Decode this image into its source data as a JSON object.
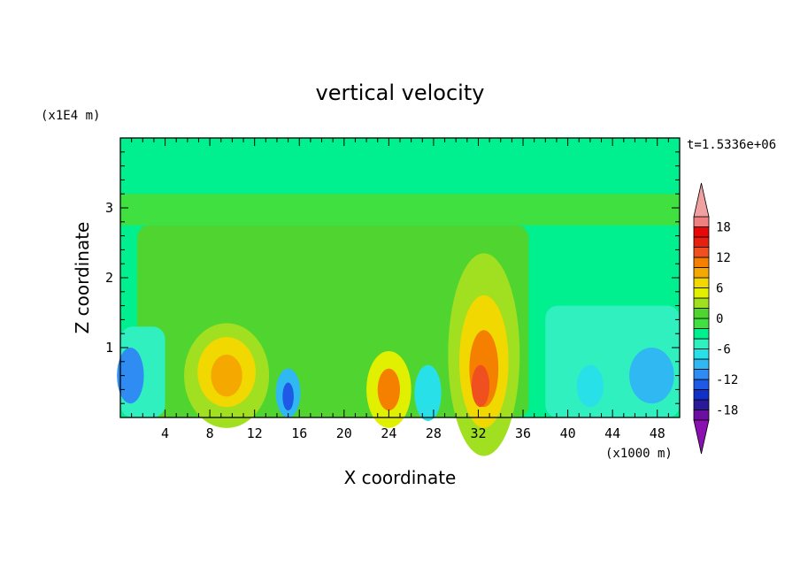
{
  "chart_data": {
    "type": "heatmap",
    "title": "vertical velocity",
    "xlabel": "X coordinate",
    "ylabel": "Z coordinate",
    "x_unit": "(x1000 m)",
    "y_unit": "(x1E4 m)",
    "time_label": "t=1.5336e+06",
    "xlim": [
      0,
      50
    ],
    "ylim": [
      0,
      4
    ],
    "x_ticks": [
      4,
      8,
      12,
      16,
      20,
      24,
      28,
      32,
      36,
      40,
      44,
      48
    ],
    "y_ticks": [
      1,
      2,
      3
    ],
    "x_tick_labels": [
      "4",
      "8",
      "12",
      "16",
      "20",
      "24",
      "28",
      "32",
      "36",
      "40",
      "44",
      "48"
    ],
    "y_tick_labels": [
      "1",
      "2",
      "3"
    ],
    "colorbar": {
      "levels": [
        -20,
        -18,
        -16,
        -14,
        -12,
        -10,
        -8,
        -6,
        -4,
        -2,
        0,
        2,
        4,
        6,
        8,
        10,
        12,
        14,
        16,
        18,
        20
      ],
      "colors": [
        "#6a0fa0",
        "#2a1a9a",
        "#1030c8",
        "#1e5ae6",
        "#2f8cf2",
        "#2fb8f2",
        "#28e0e8",
        "#30f0c0",
        "#00f090",
        "#40e040",
        "#50d430",
        "#a0e020",
        "#e0f000",
        "#f0d800",
        "#f5a800",
        "#f58000",
        "#f05020",
        "#e82010",
        "#e80808",
        "#f08080"
      ],
      "under_color": "#8a10b0",
      "over_color": "#f0a0a0",
      "tick_values": [
        -18,
        -12,
        -6,
        0,
        6,
        12,
        18
      ],
      "tick_labels": [
        "-18",
        "-12",
        "-6",
        "0",
        "6",
        "12",
        "18"
      ]
    },
    "background_value": -3,
    "regions": [
      {
        "kind": "band",
        "zmin": 2.75,
        "zmax": 3.2,
        "xmin": 0,
        "xmax": 50,
        "value": -1
      },
      {
        "kind": "zone",
        "xmin": 1.5,
        "xmax": 36.5,
        "zmin": 0,
        "zmax": 2.75,
        "value": 1
      },
      {
        "kind": "zone",
        "xmin": 0,
        "xmax": 4,
        "zmin": 0,
        "zmax": 1.3,
        "value": -5
      },
      {
        "kind": "zone",
        "xmin": 38,
        "xmax": 50,
        "zmin": 0,
        "zmax": 1.6,
        "value": -5
      },
      {
        "kind": "blob",
        "x": 0.9,
        "z": 0.6,
        "rx": 1.2,
        "rz": 0.4,
        "value": -11
      },
      {
        "kind": "blob",
        "x": 9.5,
        "z": 0.6,
        "rx": 3.8,
        "rz": 0.75,
        "value": 3
      },
      {
        "kind": "blob",
        "x": 9.5,
        "z": 0.65,
        "rx": 2.6,
        "rz": 0.5,
        "value": 7
      },
      {
        "kind": "blob",
        "x": 9.5,
        "z": 0.6,
        "rx": 1.4,
        "rz": 0.3,
        "value": 9
      },
      {
        "kind": "blob",
        "x": 15.0,
        "z": 0.35,
        "rx": 1.1,
        "rz": 0.35,
        "value": -9
      },
      {
        "kind": "blob",
        "x": 15.0,
        "z": 0.3,
        "rx": 0.5,
        "rz": 0.2,
        "value": -13
      },
      {
        "kind": "blob",
        "x": 24.0,
        "z": 0.4,
        "rx": 2.0,
        "rz": 0.55,
        "value": 5
      },
      {
        "kind": "blob",
        "x": 24.0,
        "z": 0.4,
        "rx": 1.0,
        "rz": 0.3,
        "value": 11
      },
      {
        "kind": "blob",
        "x": 27.5,
        "z": 0.35,
        "rx": 1.2,
        "rz": 0.4,
        "value": -7
      },
      {
        "kind": "blob",
        "x": 32.5,
        "z": 0.9,
        "rx": 3.2,
        "rz": 1.45,
        "value": 3
      },
      {
        "kind": "blob",
        "x": 32.5,
        "z": 0.8,
        "rx": 2.2,
        "rz": 0.95,
        "value": 7
      },
      {
        "kind": "blob",
        "x": 32.5,
        "z": 0.7,
        "rx": 1.3,
        "rz": 0.55,
        "value": 11
      },
      {
        "kind": "blob",
        "x": 32.2,
        "z": 0.45,
        "rx": 0.8,
        "rz": 0.3,
        "value": 13
      },
      {
        "kind": "blob",
        "x": 47.5,
        "z": 0.6,
        "rx": 2.0,
        "rz": 0.4,
        "value": -9
      },
      {
        "kind": "blob",
        "x": 42.0,
        "z": 0.45,
        "rx": 1.2,
        "rz": 0.3,
        "value": -7
      }
    ]
  }
}
